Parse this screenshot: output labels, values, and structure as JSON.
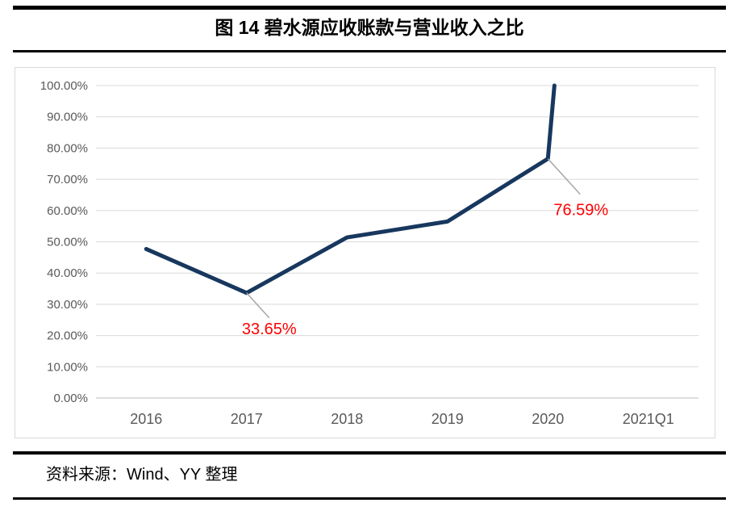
{
  "page": {
    "title": "图 14  碧水源应收账款与营业收入之比",
    "source_note": "资料来源：Wind、YY 整理"
  },
  "colors": {
    "line": "#17375E",
    "annotation": "#FF0000",
    "axis_text": "#595959",
    "gridline": "#D9D9D9",
    "axis_line": "#BFBFBF",
    "leader": "#A6A6A6",
    "rule": "#000000",
    "chart_border": "#D9D9D9"
  },
  "chart_data": {
    "type": "line",
    "title": "图 14  碧水源应收账款与营业收入之比",
    "categories": [
      "2016",
      "2017",
      "2018",
      "2019",
      "2020",
      "2021Q1"
    ],
    "series": [
      {
        "name": "应收账款与营业收入之比",
        "values": [
          47.7,
          33.65,
          51.4,
          56.5,
          76.59,
          null
        ]
      }
    ],
    "xlabel": "",
    "ylabel": "",
    "ylim": [
      0,
      100
    ],
    "y_tick_step": 10,
    "y_tick_labels": [
      "100.00%",
      "90.00%",
      "80.00%",
      "70.00%",
      "60.00%",
      "50.00%",
      "40.00%",
      "30.00%",
      "20.00%",
      "10.00%",
      "0.00%"
    ],
    "grid": true,
    "legend": false,
    "line_clipped_at_ymax": true,
    "clip_note": "Segment after 2020 exits the top of the plot (2021Q1 value exceeds 100% axis max)",
    "visible_polyline": [
      [
        0,
        47.7
      ],
      [
        1,
        33.65
      ],
      [
        2,
        51.4
      ],
      [
        3,
        56.5
      ],
      [
        4,
        76.59
      ],
      [
        4.065,
        100
      ]
    ],
    "annotations": [
      {
        "text": "33.65%",
        "x": 1,
        "y": 33.65,
        "leader": [
          28,
          31
        ],
        "label_offset": [
          28,
          51
        ]
      },
      {
        "text": "76.59%",
        "x": 4,
        "y": 76.59,
        "leader": [
          40,
          44
        ],
        "label_offset": [
          41,
          70
        ]
      }
    ]
  }
}
